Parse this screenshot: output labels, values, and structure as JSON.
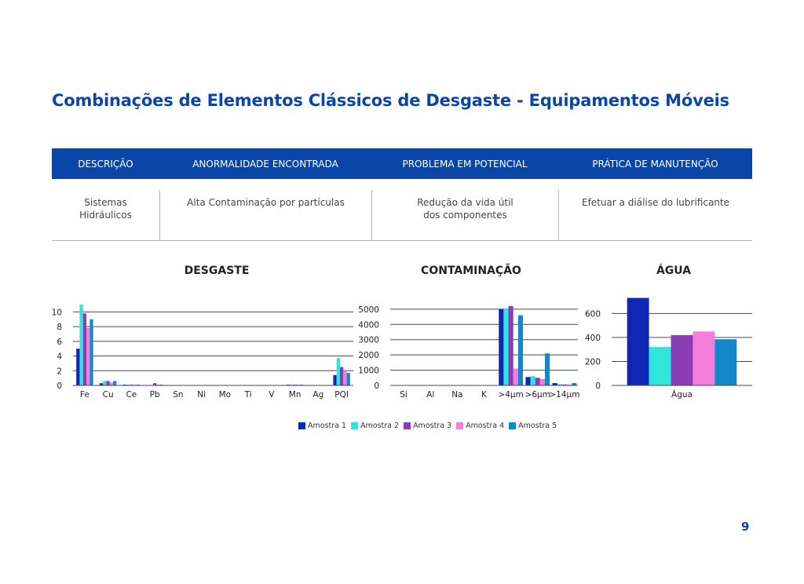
{
  "page": {
    "title": "Combinações de Elementos Clássicos de Desgaste - Equipamentos Móveis",
    "page_number": "9"
  },
  "table": {
    "headers": [
      "DESCRIÇÃO",
      "ANORMALIDADE ENCONTRADA",
      "PROBLEMA EM POTENCIAL",
      "PRÁTICA DE MANUTENÇÃO"
    ],
    "row": {
      "descricao": "Sistemas\nHidráulicos",
      "anormalidade": "Alta Contaminação por partículas",
      "problema": "Redução da vida útil\ndos componentes",
      "pratica": "Efetuar a diálise do lubrificante"
    }
  },
  "colors": {
    "brand": "#0a46a8",
    "series": [
      "#0f28b4",
      "#2de6dc",
      "#8c3cb4",
      "#f57ddc",
      "#1487c8"
    ]
  },
  "chart_data": [
    {
      "type": "bar",
      "title": "DESGASTE",
      "categories": [
        "Fe",
        "Cu",
        "Ce",
        "Pb",
        "Sn",
        "Ni",
        "Mo",
        "Ti",
        "V",
        "Mn",
        "Ag",
        "PQI"
      ],
      "ylim": [
        0,
        11
      ],
      "yticks": [
        "0",
        "2",
        "4",
        "6",
        "8",
        "10"
      ],
      "grid": true,
      "series": [
        {
          "name": "Amostra 1",
          "values": [
            5,
            0.3,
            0.1,
            0,
            0,
            0,
            0,
            0,
            0,
            0.1,
            0,
            1.4
          ]
        },
        {
          "name": "Amostra 2",
          "values": [
            11,
            0.6,
            0.1,
            0,
            0,
            0,
            0,
            0,
            0,
            0.1,
            0,
            3.7
          ]
        },
        {
          "name": "Amostra 3",
          "values": [
            9.8,
            0.6,
            0.1,
            0.3,
            0,
            0,
            0,
            0,
            0,
            0.1,
            0,
            2.5
          ]
        },
        {
          "name": "Amostra 4",
          "values": [
            7.8,
            0.4,
            0.1,
            0.1,
            0,
            0,
            0,
            0,
            0,
            0.1,
            0,
            2.0
          ]
        },
        {
          "name": "Amostra 5",
          "values": [
            9,
            0.6,
            0.1,
            0.1,
            0,
            0,
            0,
            0,
            0,
            0.1,
            0,
            1.7
          ]
        }
      ]
    },
    {
      "type": "bar",
      "title": "CONTAMINAÇÃO",
      "categories": [
        "Si",
        "Al",
        "Na",
        "K",
        ">4μm",
        ">6μm",
        ">14μm"
      ],
      "ylim": [
        0,
        5200
      ],
      "yticks": [
        "0",
        "1000",
        "2000",
        "3000",
        "4000",
        "5000"
      ],
      "grid": true,
      "series": [
        {
          "name": "Amostra 1",
          "values": [
            0,
            0,
            0,
            0,
            5000,
            550,
            150
          ]
        },
        {
          "name": "Amostra 2",
          "values": [
            0,
            0,
            0,
            0,
            5000,
            600,
            80
          ]
        },
        {
          "name": "Amostra 3",
          "values": [
            0,
            0,
            0,
            0,
            5200,
            500,
            60
          ]
        },
        {
          "name": "Amostra 4",
          "values": [
            0,
            0,
            0,
            0,
            1100,
            420,
            50
          ]
        },
        {
          "name": "Amostra 5",
          "values": [
            0,
            0,
            0,
            0,
            4600,
            2100,
            150
          ]
        }
      ]
    },
    {
      "type": "bar",
      "title": "ÁGUA",
      "categories": [
        "Água"
      ],
      "ylim": [
        0,
        740
      ],
      "yticks": [
        "0",
        "200",
        "400",
        "600"
      ],
      "grid": true,
      "series": [
        {
          "name": "Amostra 1",
          "values": [
            730
          ]
        },
        {
          "name": "Amostra 2",
          "values": [
            320
          ]
        },
        {
          "name": "Amostra 3",
          "values": [
            420
          ]
        },
        {
          "name": "Amostra 4",
          "values": [
            450
          ]
        },
        {
          "name": "Amostra 5",
          "values": [
            385
          ]
        }
      ]
    }
  ]
}
